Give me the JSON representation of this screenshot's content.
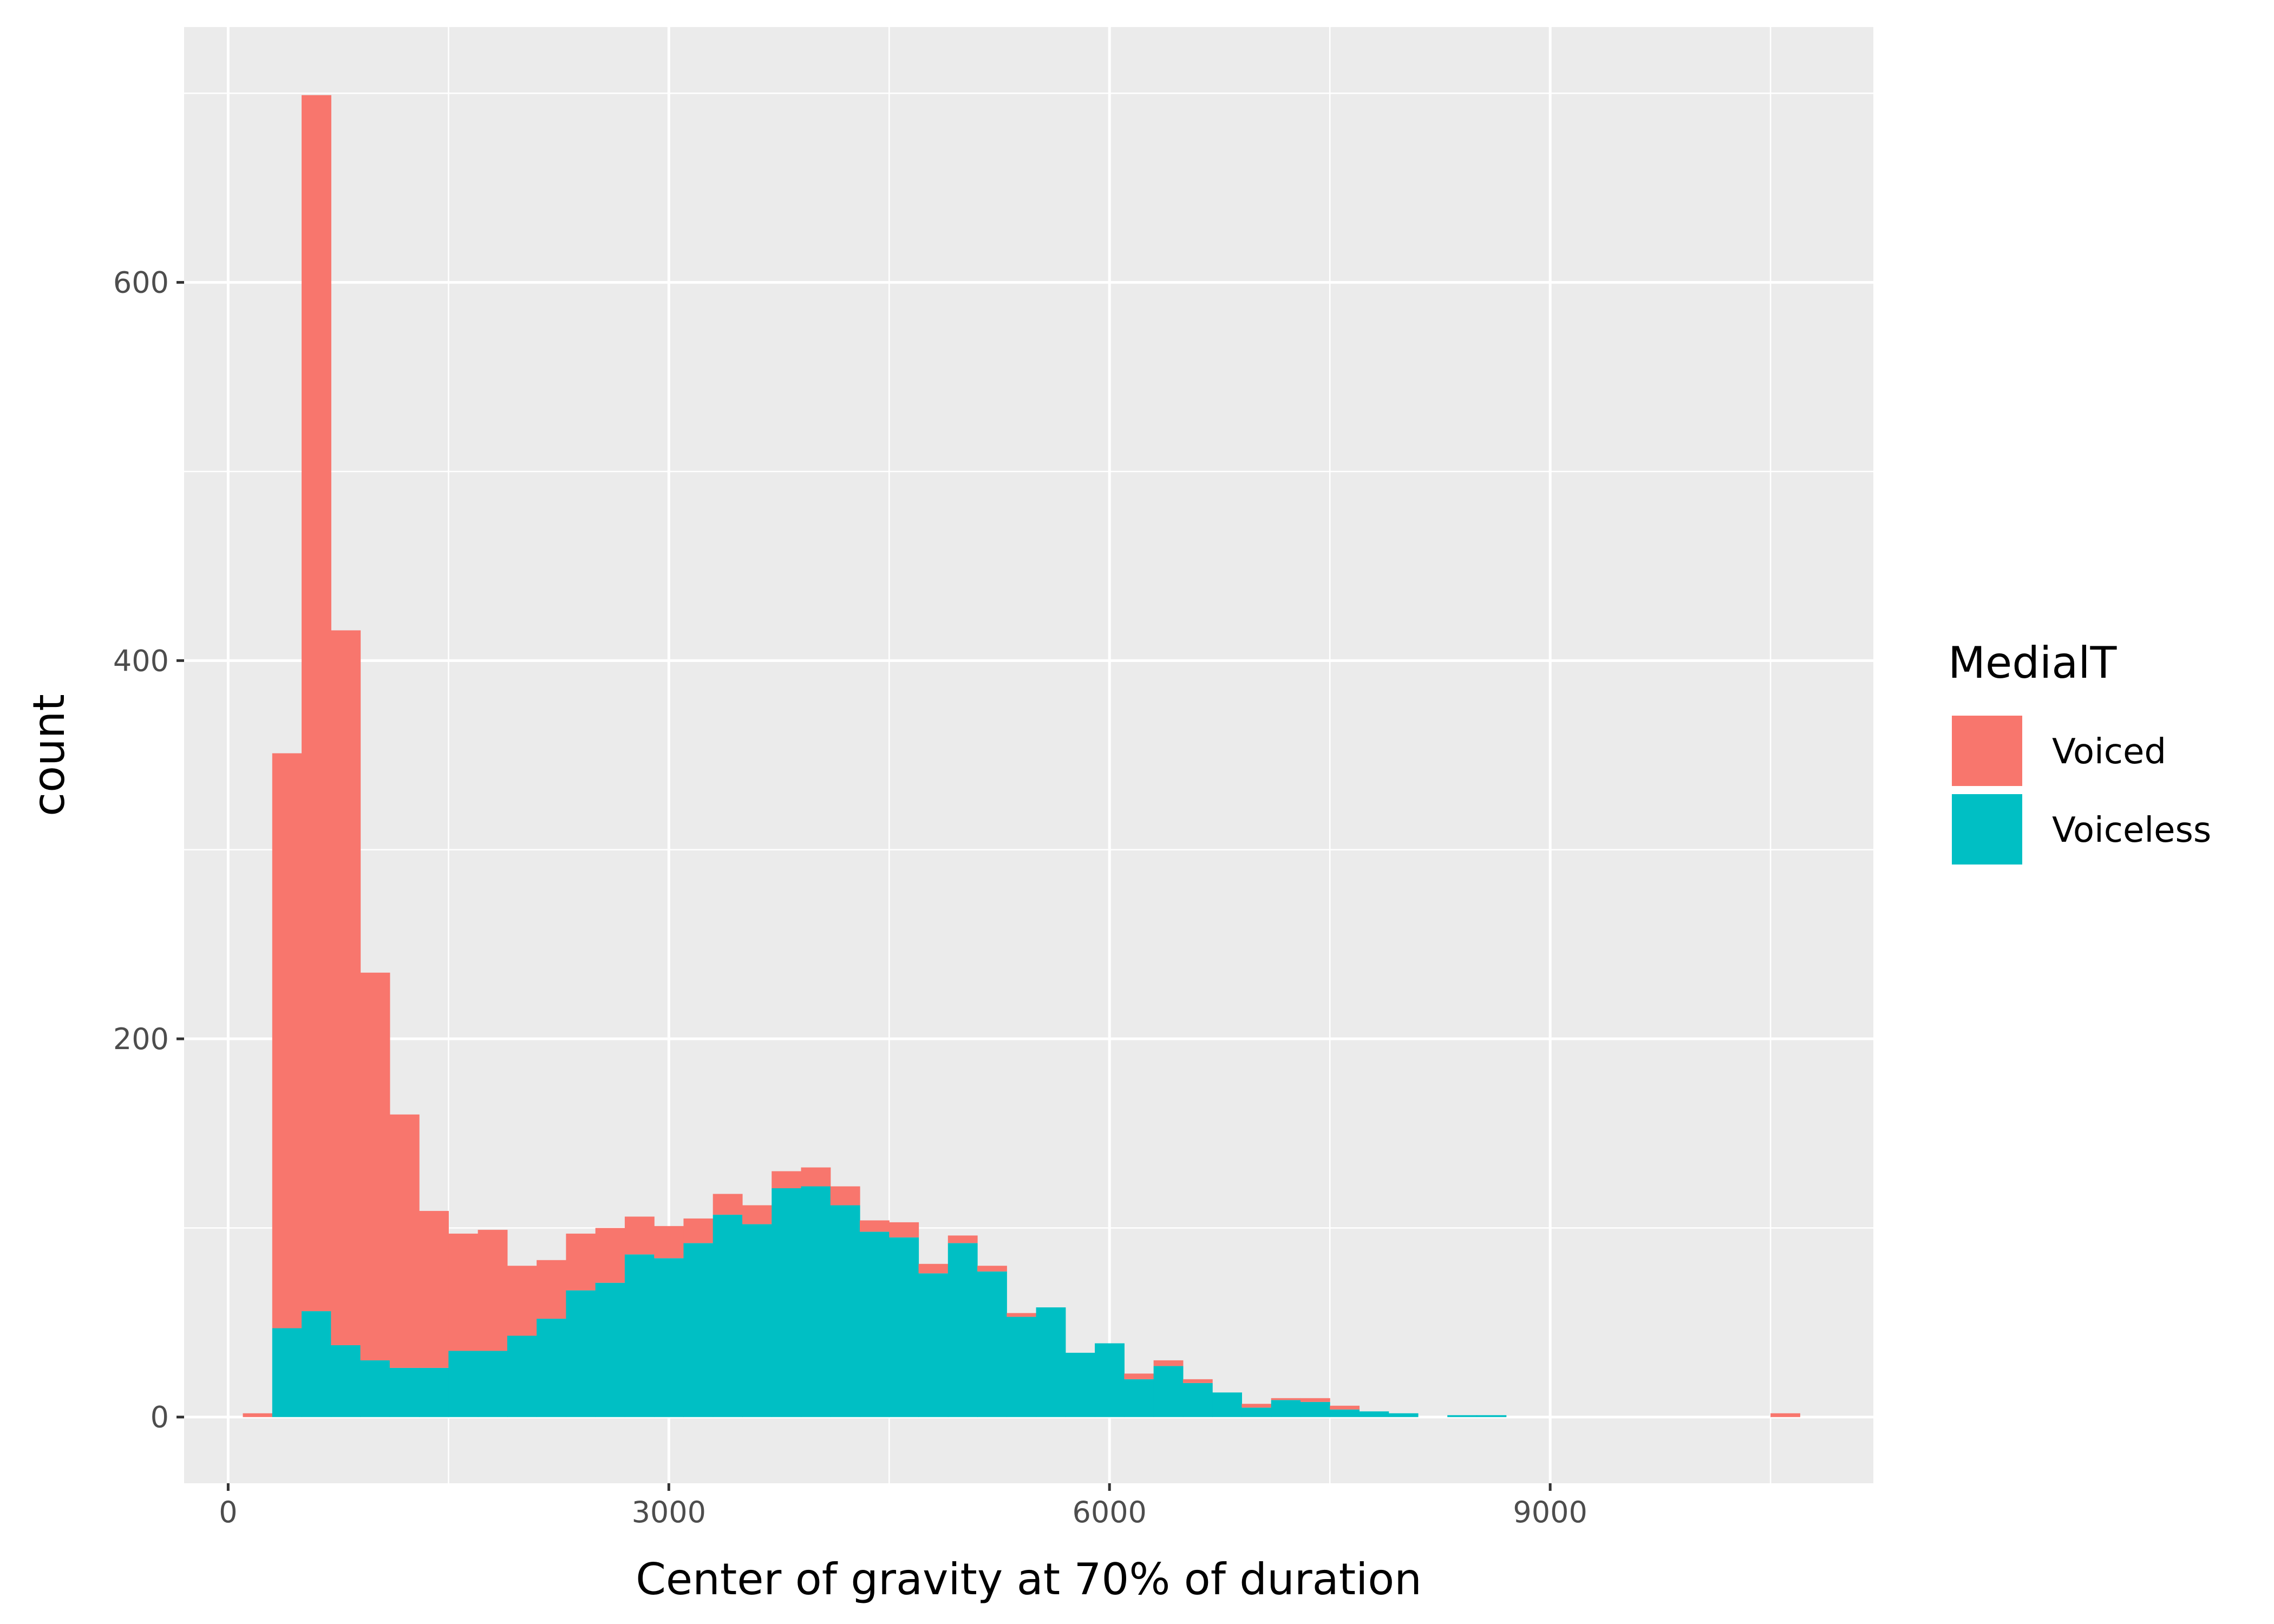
{
  "chart_data": {
    "type": "bar",
    "stacked": true,
    "xlabel": "Center of gravity at 70% of duration",
    "ylabel": "count",
    "xlim": [
      -300,
      11200
    ],
    "ylim": [
      -35,
      735
    ],
    "x_ticks": [
      0,
      3000,
      6000,
      9000
    ],
    "y_ticks": [
      0,
      200,
      400,
      600
    ],
    "grid": true,
    "bin_width": 200,
    "bin_centers": [
      200,
      400,
      600,
      800,
      1000,
      1200,
      1400,
      1600,
      1800,
      2000,
      2200,
      2400,
      2600,
      2800,
      3000,
      3200,
      3400,
      3600,
      3800,
      4000,
      4200,
      4400,
      4600,
      4800,
      5000,
      5200,
      5400,
      5600,
      5800,
      6000,
      6200,
      6400,
      6600,
      6800,
      7000,
      7200,
      7400,
      7600,
      7800,
      8000,
      8200,
      8400,
      8600,
      8800,
      9000,
      9200,
      9400,
      9600,
      9800,
      10000,
      10200,
      10400,
      10600
    ],
    "legend": {
      "title": "MedialT",
      "position": "right"
    },
    "series": [
      {
        "name": "Voiced",
        "color": "#F8766D",
        "values": [
          2,
          304,
          643,
          378,
          205,
          134,
          83,
          62,
          64,
          37,
          31,
          30,
          29,
          20,
          17,
          13,
          11,
          10,
          9,
          10,
          10,
          6,
          8,
          5,
          4,
          3,
          2,
          0,
          0,
          0,
          3,
          3,
          2,
          0,
          2,
          1,
          2,
          2,
          0,
          0,
          0,
          0,
          0,
          0,
          0,
          0,
          0,
          0,
          0,
          0,
          0,
          0,
          2
        ]
      },
      {
        "name": "Voiceless",
        "color": "#00BFC4",
        "values": [
          0,
          47,
          56,
          38,
          30,
          26,
          26,
          35,
          35,
          43,
          52,
          67,
          71,
          86,
          84,
          92,
          107,
          102,
          121,
          122,
          112,
          98,
          95,
          76,
          92,
          77,
          53,
          58,
          34,
          39,
          20,
          27,
          18,
          13,
          5,
          9,
          8,
          4,
          3,
          2,
          0,
          1,
          1,
          0,
          0,
          0,
          0,
          0,
          0,
          0,
          0,
          0,
          0
        ]
      }
    ]
  }
}
